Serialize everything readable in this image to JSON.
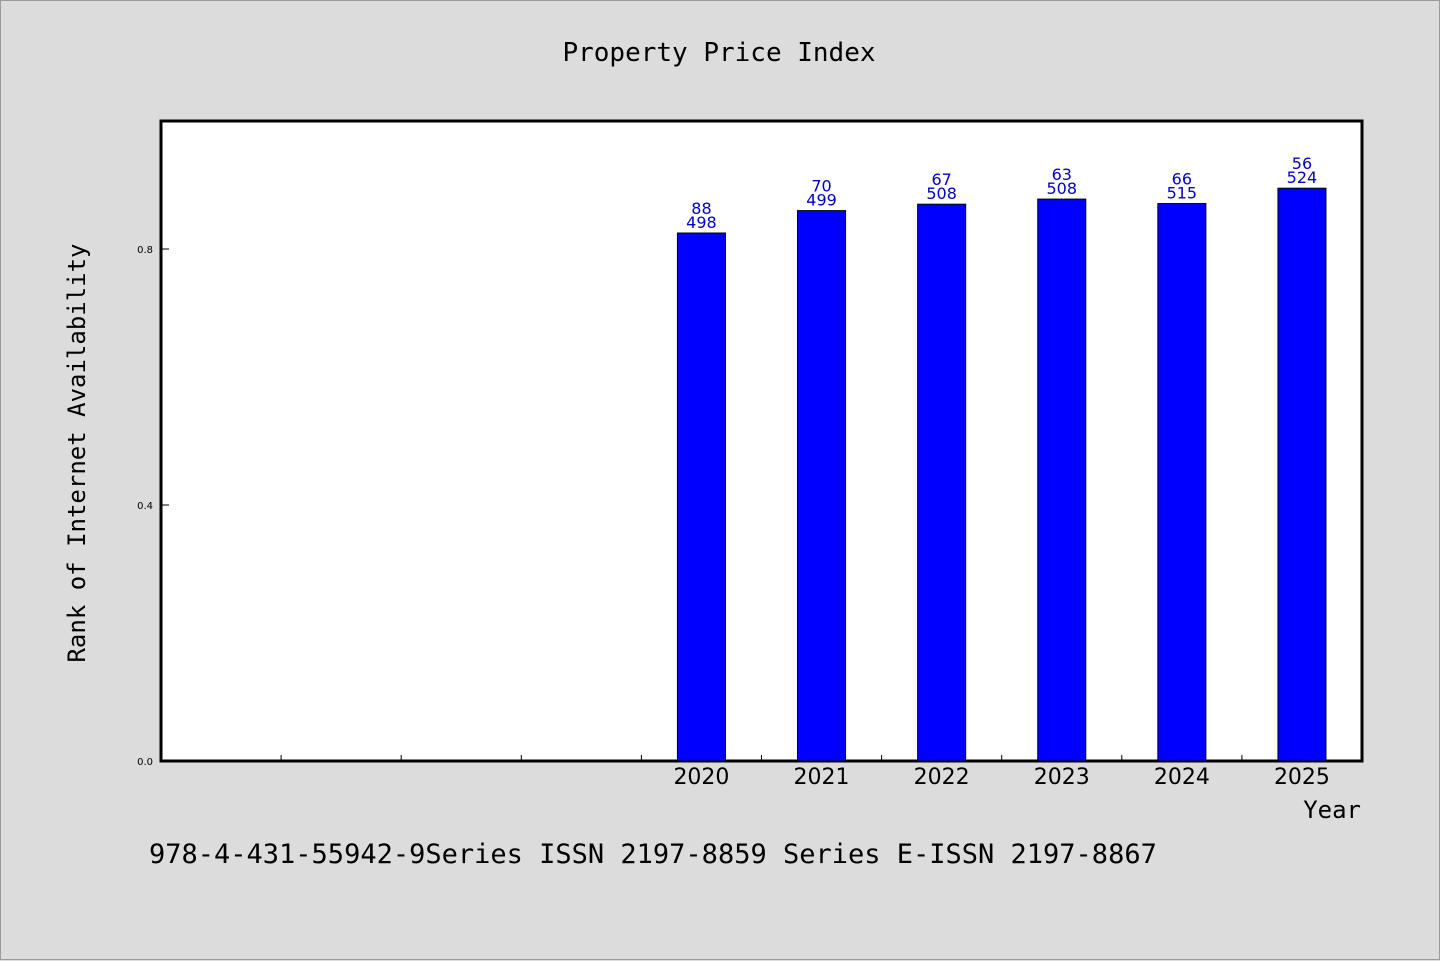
{
  "chart_data": {
    "type": "bar",
    "title": "Property Price Index",
    "xlabel": "Year",
    "ylabel": "Rank of Internet Availability",
    "categories": [
      "",
      "",
      "",
      "",
      "2020",
      "2021",
      "2022",
      "2023",
      "2024",
      "2025"
    ],
    "values": [
      null,
      null,
      null,
      null,
      0.825,
      0.86,
      0.87,
      0.878,
      0.871,
      0.895
    ],
    "data_labels_top": [
      "",
      "",
      "",
      "",
      "88",
      "70",
      "67",
      "63",
      "66",
      "56"
    ],
    "data_labels_bottom": [
      "",
      "",
      "",
      "",
      "498",
      "499",
      "508",
      "508",
      "515",
      "524"
    ],
    "ylim": [
      0,
      1.0
    ],
    "yticks": [
      0.0,
      0.4,
      0.8
    ],
    "ytick_labels": [
      "0.0",
      "0.4",
      "0.8"
    ],
    "grid": false,
    "legend": false
  },
  "colors": {
    "bar": "#0000ff",
    "label": "#0000c8",
    "background": "#dcdcdc",
    "plot": "#ffffff"
  },
  "footer": "978-4-431-55942-9Series ISSN 2197-8859 Series E-ISSN 2197-8867"
}
